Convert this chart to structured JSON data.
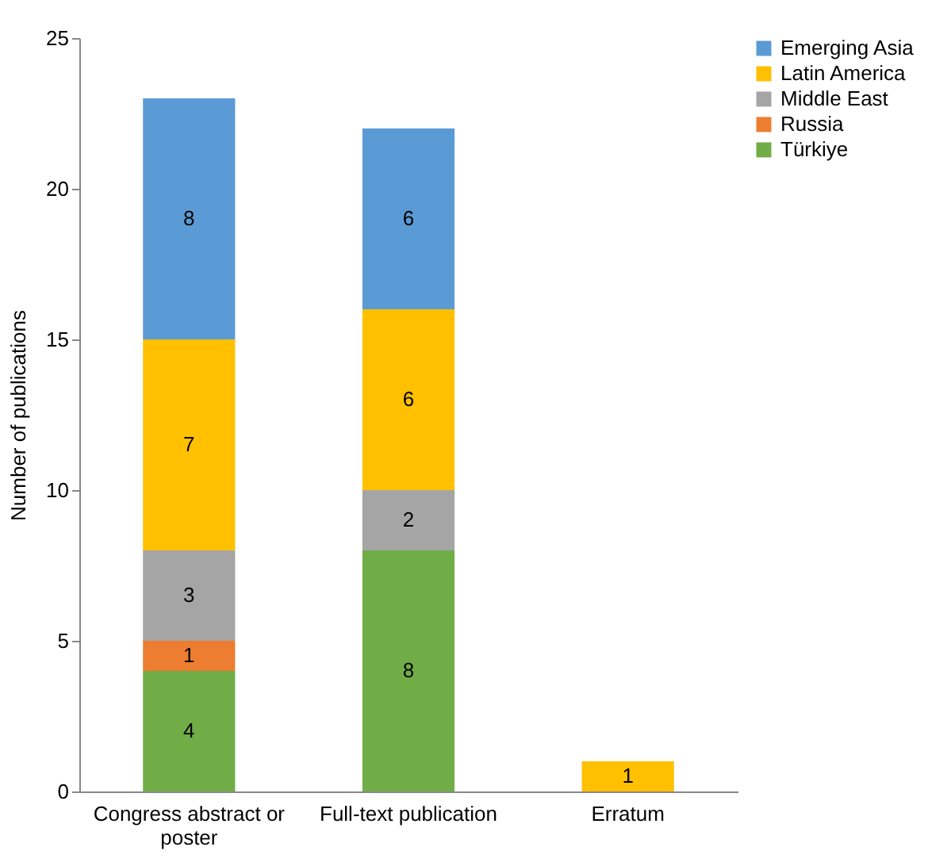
{
  "chart_data": {
    "type": "bar",
    "stacked": true,
    "ylabel": "Number of publications",
    "categories": [
      "Congress abstract or poster",
      "Full-text publication",
      "Erratum"
    ],
    "series": [
      {
        "name": "Türkiye",
        "color": "#70ad47",
        "values": [
          4,
          8,
          null
        ]
      },
      {
        "name": "Russia",
        "color": "#ed7d31",
        "values": [
          1,
          null,
          null
        ]
      },
      {
        "name": "Middle East",
        "color": "#a5a5a5",
        "values": [
          3,
          2,
          null
        ]
      },
      {
        "name": "Latin America",
        "color": "#ffc000",
        "values": [
          7,
          6,
          1
        ]
      },
      {
        "name": "Emerging Asia",
        "color": "#5b9bd5",
        "values": [
          8,
          6,
          null
        ]
      }
    ],
    "ylim": [
      0,
      25
    ],
    "yticks": [
      0,
      5,
      10,
      15,
      20,
      25
    ],
    "grid": false,
    "legend": "right",
    "data_labels": true
  }
}
